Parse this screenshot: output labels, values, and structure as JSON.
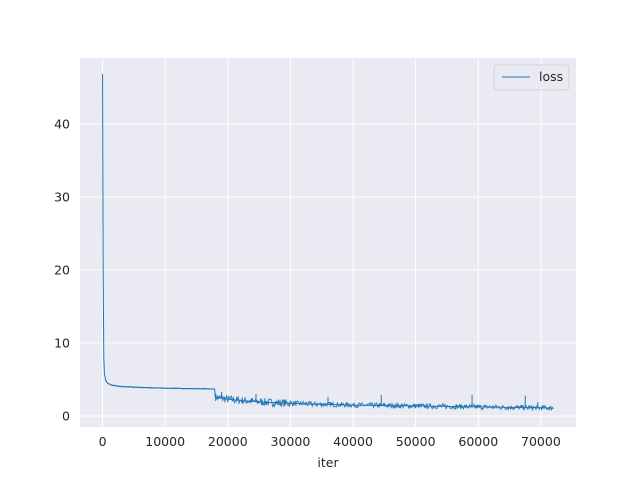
{
  "chart_data": {
    "type": "line",
    "title": "",
    "xlabel": "iter",
    "ylabel": "",
    "xlim": [
      -3600,
      75600
    ],
    "ylim": [
      -1.5,
      49.0
    ],
    "x_ticks": [
      0,
      10000,
      20000,
      30000,
      40000,
      50000,
      60000,
      70000
    ],
    "y_ticks": [
      0,
      10,
      20,
      30,
      40
    ],
    "grid": true,
    "legend_position": "top-right",
    "colors": {
      "background": "#eaeaf2",
      "grid": "#ffffff",
      "series": "#1f77b4"
    },
    "series": [
      {
        "name": "loss",
        "points": [
          [
            0,
            46.8
          ],
          [
            100,
            20.0
          ],
          [
            200,
            8.0
          ],
          [
            300,
            5.8
          ],
          [
            500,
            4.9
          ],
          [
            800,
            4.5
          ],
          [
            1500,
            4.2
          ],
          [
            3000,
            4.05
          ],
          [
            5000,
            3.95
          ],
          [
            8000,
            3.85
          ],
          [
            11000,
            3.8
          ],
          [
            14000,
            3.75
          ],
          [
            17500,
            3.7
          ],
          [
            17900,
            3.7
          ],
          [
            18000,
            2.6
          ],
          [
            18500,
            2.5
          ],
          [
            20000,
            2.3
          ],
          [
            22000,
            2.15
          ],
          [
            24000,
            2.0
          ],
          [
            27000,
            1.85
          ],
          [
            30000,
            1.75
          ],
          [
            33000,
            1.65
          ],
          [
            36000,
            1.6
          ],
          [
            40000,
            1.5
          ],
          [
            44000,
            1.45
          ],
          [
            48000,
            1.4
          ],
          [
            52000,
            1.35
          ],
          [
            56000,
            1.3
          ],
          [
            60000,
            1.25
          ],
          [
            64000,
            1.2
          ],
          [
            68000,
            1.15
          ],
          [
            72000,
            1.1
          ]
        ],
        "spikes": [
          [
            19000,
            3.3
          ],
          [
            24500,
            3.0
          ],
          [
            36000,
            2.6
          ],
          [
            44500,
            2.9
          ],
          [
            59000,
            2.9
          ],
          [
            67500,
            2.8
          ],
          [
            69500,
            1.9
          ]
        ]
      }
    ]
  }
}
